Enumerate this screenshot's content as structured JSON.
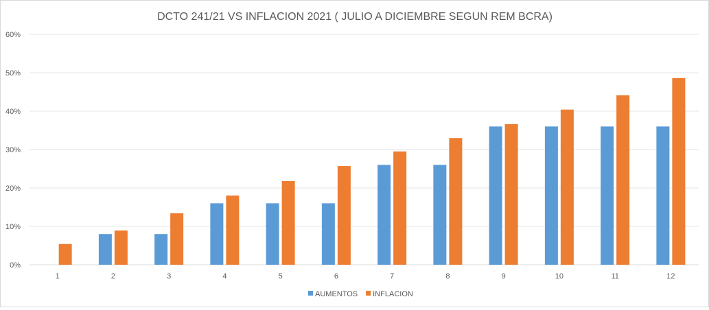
{
  "chart_data": {
    "type": "bar",
    "title": "DCTO 241/21 VS INFLACION 2021 ( JULIO A DICIEMBRE SEGUN REM BCRA)",
    "xlabel": "",
    "ylabel": "",
    "categories": [
      "1",
      "2",
      "3",
      "4",
      "5",
      "6",
      "7",
      "8",
      "9",
      "10",
      "11",
      "12"
    ],
    "ylim": [
      0,
      60
    ],
    "yticks": [
      0,
      10,
      20,
      30,
      40,
      50,
      60
    ],
    "ytick_format": "%",
    "grid": true,
    "legend_position": "bottom",
    "series": [
      {
        "name": "AUMENTOS",
        "color": "#5b9bd5",
        "values": [
          0,
          8,
          8,
          16,
          16,
          16,
          26,
          26,
          36,
          36,
          36,
          36
        ]
      },
      {
        "name": "INFLACION",
        "color": "#ed7d31",
        "values": [
          5.4,
          8.9,
          13.4,
          18.0,
          21.8,
          25.7,
          29.5,
          33.0,
          36.6,
          40.4,
          44.1,
          48.6
        ]
      }
    ]
  }
}
